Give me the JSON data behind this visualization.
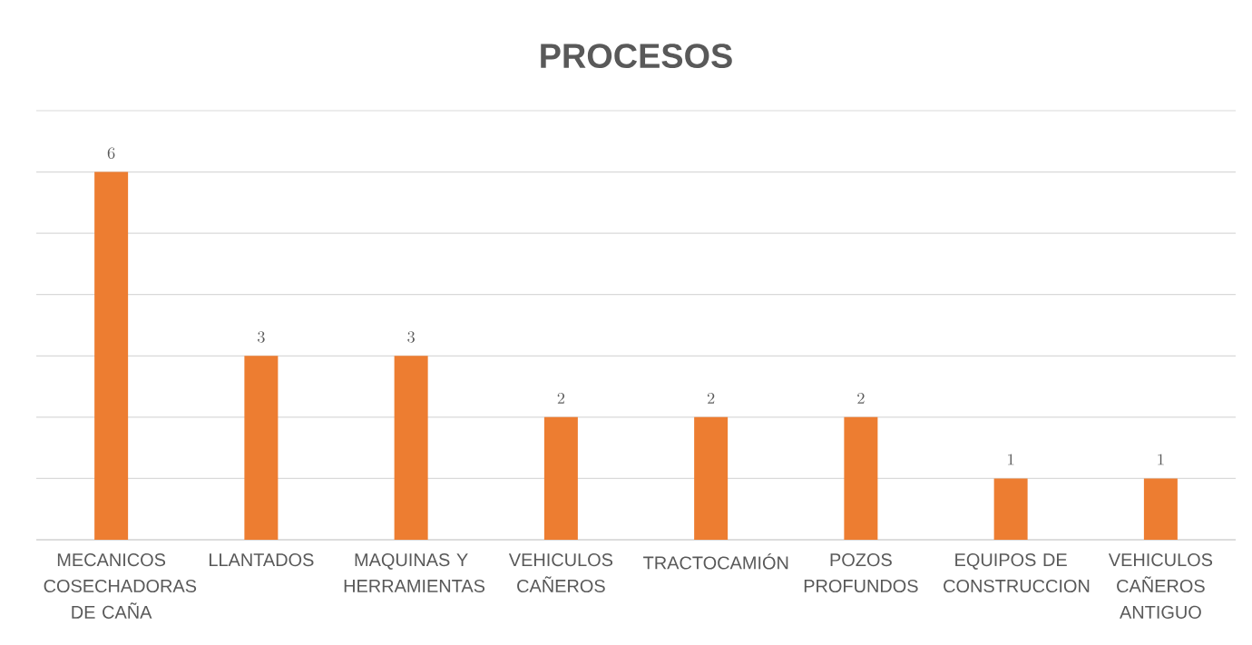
{
  "chart_data": {
    "type": "bar",
    "title": "PROCESOS",
    "categories": [
      "MECANICOS COSECHADORAS DE CAÑA",
      "LLANTADOS",
      "MAQUINAS Y HERRAMIENTAS",
      "VEHICULOS CAÑEROS",
      "TRACTOCAMIÓN",
      "POZOS PROFUNDOS",
      "EQUIPOS DE CONSTRUCCION",
      "VEHICULOS CAÑEROS ANTIGUO"
    ],
    "values": [
      6,
      3,
      3,
      2,
      2,
      2,
      1,
      1
    ],
    "color": "#ed7d31",
    "ylim": [
      0,
      7
    ],
    "yticks": [
      {
        "value": 0,
        "label": null
      },
      {
        "value": 1,
        "label": null
      },
      {
        "value": 2,
        "label": null
      },
      {
        "value": 3,
        "label": null
      },
      {
        "value": 4,
        "label": null
      },
      {
        "value": 5,
        "label": null
      },
      {
        "value": 6,
        "label": null
      },
      {
        "value": 7,
        "label": null
      }
    ],
    "grid": "y",
    "tick_labels": "x",
    "data_labels": true
  }
}
